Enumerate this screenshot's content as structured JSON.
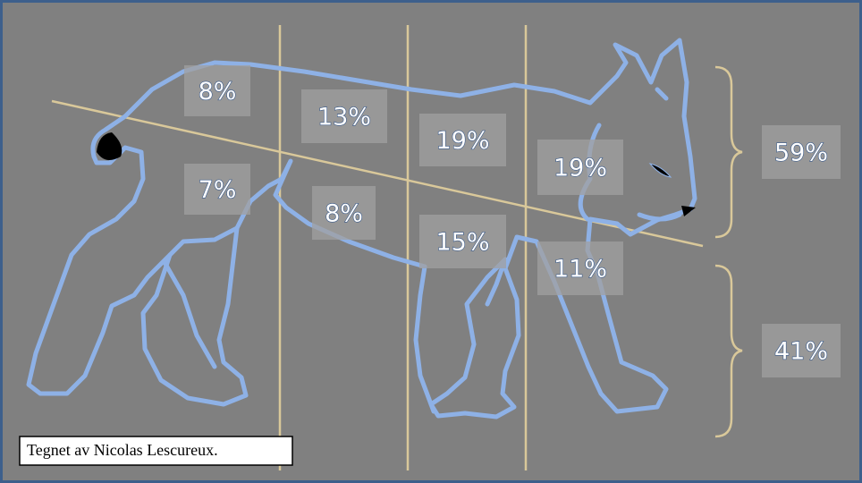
{
  "labels": [
    "8%",
    "13%",
    "19%",
    "19%",
    "7%",
    "8%",
    "15%",
    "11%",
    "59%",
    "41%"
  ],
  "caption": "Tegnet av Nicolas Lescureux."
}
